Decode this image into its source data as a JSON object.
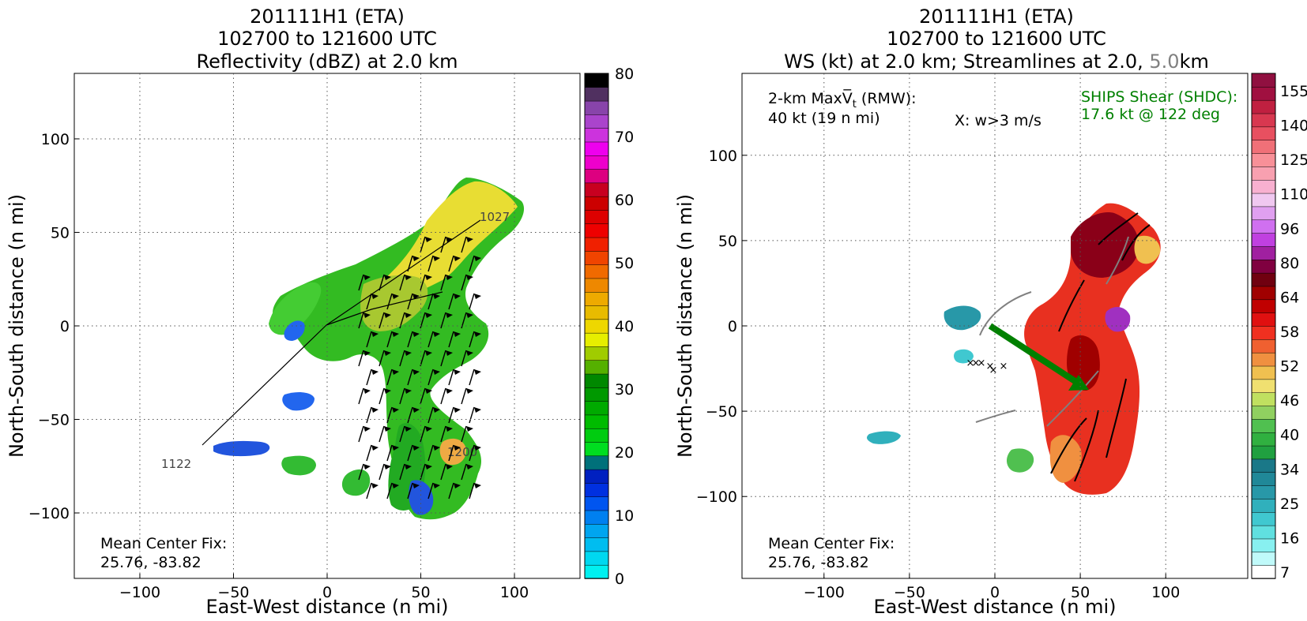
{
  "chart_data": [
    {
      "type": "heatmap",
      "title_lines": [
        "201111H1 (ETA)",
        "102700 to 121600 UTC",
        "Reflectivity (dBZ) at 2.0 km"
      ],
      "xlabel": "East-West distance (n mi)",
      "ylabel": "North-South distance (n mi)",
      "xlim": [
        -135,
        135
      ],
      "ylim": [
        -135,
        135
      ],
      "xticks": [
        -100,
        -50,
        0,
        50,
        100
      ],
      "yticks": [
        -100,
        -50,
        0,
        50,
        100
      ],
      "xtick_labels": [
        "−100",
        "−50",
        "0",
        "50",
        "100"
      ],
      "ytick_labels": [
        "−100",
        "−50",
        "0",
        "50",
        "100"
      ],
      "grid": true,
      "annotation_lines": [
        "Mean Center Fix:",
        "25.76, -83.82"
      ],
      "track_labels": [
        "1027",
        "1122",
        "1200"
      ],
      "track_points": [
        [
          0,
          0
        ],
        [
          85,
          58
        ],
        [
          0,
          0
        ],
        [
          -70,
          -68
        ],
        [
          68,
          -68
        ]
      ],
      "colorbar": {
        "range": [
          0,
          80
        ],
        "tick_values": [
          0,
          10,
          20,
          30,
          40,
          50,
          60,
          70,
          80
        ],
        "tick_labels": [
          "0",
          "10",
          "20",
          "30",
          "40",
          "50",
          "60",
          "70",
          "80"
        ],
        "colors": [
          "#00f0f0",
          "#00d8f0",
          "#00bdf0",
          "#00a5f0",
          "#0080f0",
          "#0055f0",
          "#0030e0",
          "#0020c0",
          "#00707a",
          "#00dd20",
          "#00cc10",
          "#00bb00",
          "#00aa00",
          "#009900",
          "#008800",
          "#55b000",
          "#a0cc00",
          "#e6ee00",
          "#eed700",
          "#e8bb00",
          "#eeaa00",
          "#ee8800",
          "#f06a00",
          "#f04400",
          "#f02000",
          "#ee0000",
          "#dd0000",
          "#cc0000",
          "#c80020",
          "#dd0080",
          "#ee00cc",
          "#ee00ee",
          "#cc33dd",
          "#aa44cc",
          "#8844aa",
          "#503060",
          "#000000"
        ]
      }
    },
    {
      "type": "heatmap",
      "title_lines": [
        "201111H1 (ETA)",
        "102700 to 121600 UTC"
      ],
      "title_line3_parts": [
        "WS (kt) at 2.0 km; Streamlines at 2.0, ",
        "5.0",
        "km"
      ],
      "xlabel": "East-West distance (n mi)",
      "ylabel": "North-South distance (n mi)",
      "xlim": [
        -148,
        148
      ],
      "ylim": [
        -148,
        148
      ],
      "xticks": [
        -100,
        -50,
        0,
        50,
        100
      ],
      "yticks": [
        -100,
        -50,
        0,
        50,
        100
      ],
      "xtick_labels": [
        "−100",
        "−50",
        "0",
        "50",
        "100"
      ],
      "ytick_labels": [
        "−100",
        "−50",
        "0",
        "50",
        "100"
      ],
      "grid": true,
      "vmax_text": [
        "2-km Max",
        "V̅",
        "t",
        " (RMW):"
      ],
      "vmax_value": "40 kt (19 n mi)",
      "w_marker_note": "X: w>3 m/s",
      "shear_text": [
        "SHIPS Shear (SHDC):",
        "17.6 kt @ 122 deg"
      ],
      "shear_color": "#008000",
      "shear_arrow": {
        "speed_kt": 17.6,
        "direction_deg": 122
      },
      "annotation_lines": [
        "Mean Center Fix:",
        "25.76, -83.82"
      ],
      "colorbar": {
        "tick_labels": [
          "7",
          "16",
          "25",
          "34",
          "40",
          "46",
          "52",
          "58",
          "64",
          "80",
          "96",
          "110",
          "125",
          "140",
          "155"
        ],
        "colors": [
          "#ffffff",
          "#c0fafa",
          "#88f0f0",
          "#60e0e0",
          "#40c8d0",
          "#30b0bc",
          "#2898a8",
          "#208898",
          "#1a7888",
          "#20a040",
          "#30b040",
          "#50c050",
          "#90d060",
          "#c0e060",
          "#f0e070",
          "#f0c050",
          "#f09040",
          "#f06030",
          "#f03020",
          "#e01010",
          "#c00000",
          "#a00000",
          "#700010",
          "#800040",
          "#a020a0",
          "#c040e0",
          "#d070f0",
          "#e0a0f0",
          "#f0c8f0",
          "#f8b0d0",
          "#f8a0b0",
          "#f89098",
          "#f07078",
          "#e85060",
          "#d83850",
          "#c02040",
          "#a01040",
          "#901040"
        ]
      }
    }
  ]
}
